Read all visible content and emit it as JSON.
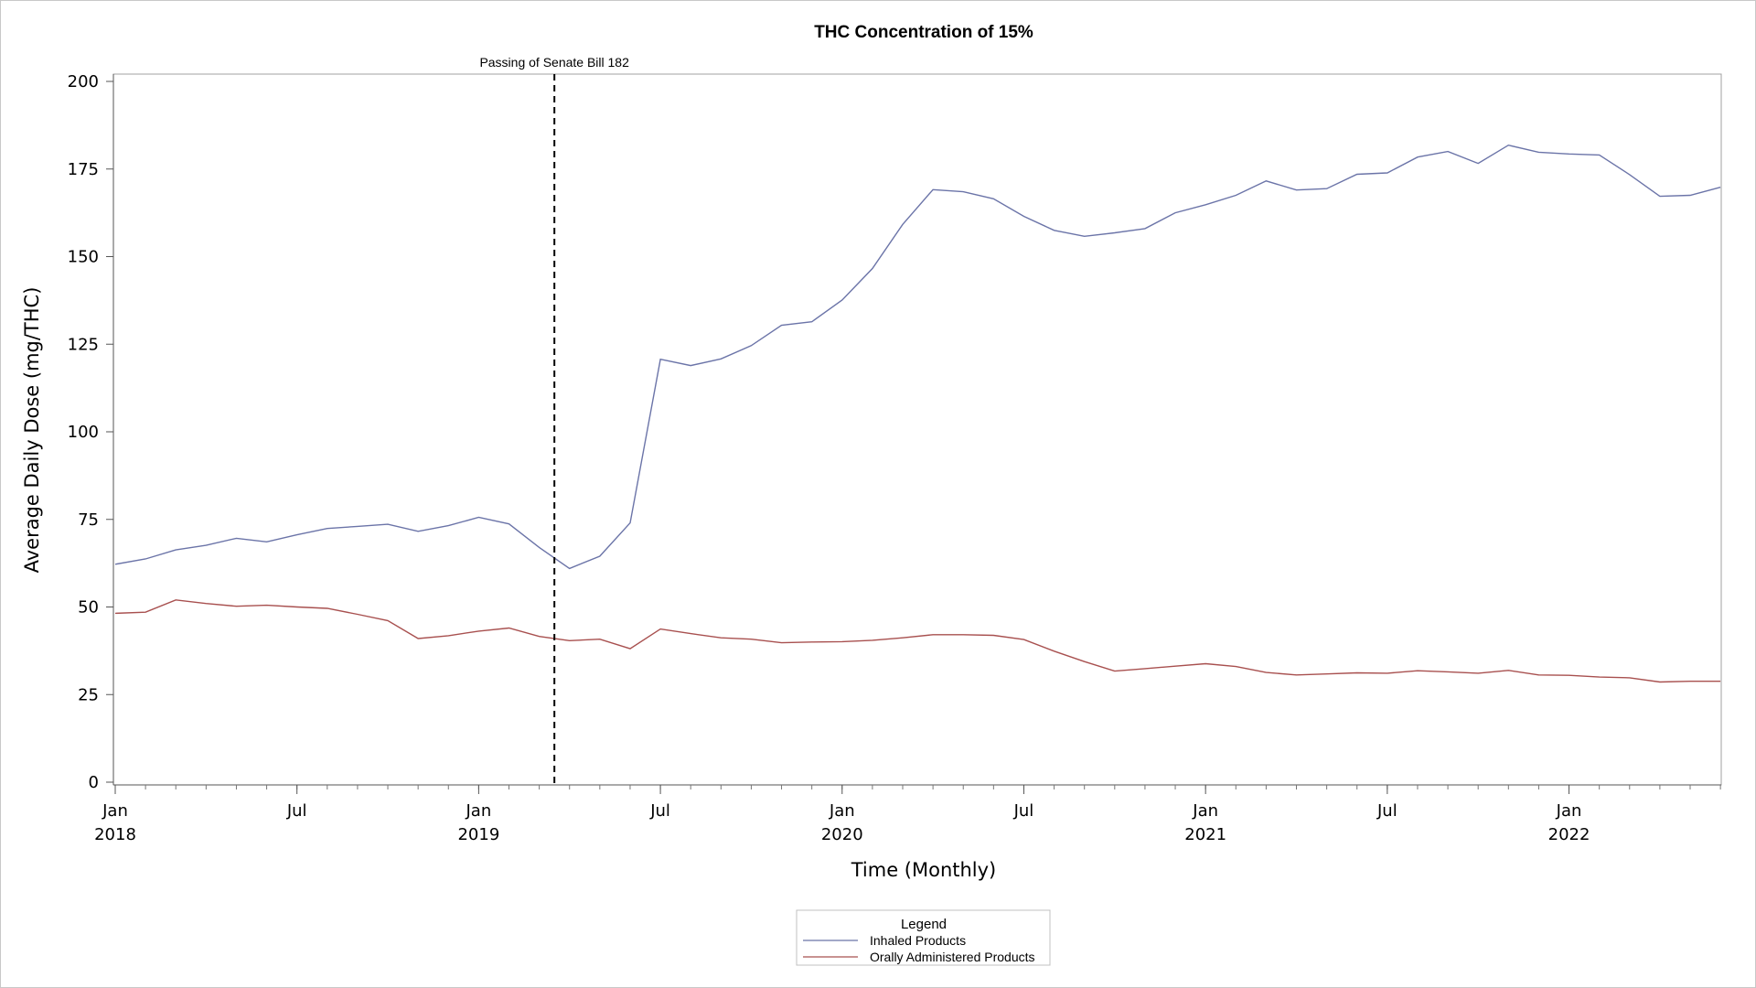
{
  "chart_data": {
    "type": "line",
    "title": "THC Concentration of 15%",
    "xlabel": "Time (Monthly)",
    "ylabel": "Average Daily Dose (mg/THC)",
    "ylim": [
      0,
      200
    ],
    "yticks": [
      0,
      25,
      50,
      75,
      100,
      125,
      150,
      175,
      200
    ],
    "x_start": "2018-01",
    "x_months": 54,
    "x_ticks": [
      {
        "month_index": 0,
        "label": "Jan",
        "year": "2018"
      },
      {
        "month_index": 6,
        "label": "Jul",
        "year": ""
      },
      {
        "month_index": 12,
        "label": "Jan",
        "year": "2019"
      },
      {
        "month_index": 18,
        "label": "Jul",
        "year": ""
      },
      {
        "month_index": 24,
        "label": "Jan",
        "year": "2020"
      },
      {
        "month_index": 30,
        "label": "Jul",
        "year": ""
      },
      {
        "month_index": 36,
        "label": "Jan",
        "year": "2021"
      },
      {
        "month_index": 42,
        "label": "Jul",
        "year": ""
      },
      {
        "month_index": 48,
        "label": "Jan",
        "year": "2022"
      }
    ],
    "annotation": {
      "label": "Passing of Senate Bill 182",
      "month_index": 14.5
    },
    "series": [
      {
        "name": "Inhaled Products",
        "color": "#6b74a8",
        "values": [
          62.2,
          63.7,
          66.3,
          67.6,
          69.6,
          68.6,
          70.6,
          72.4,
          73.0,
          73.6,
          71.6,
          73.2,
          75.6,
          73.7,
          67.0,
          61.0,
          64.5,
          74.0,
          120.7,
          118.9,
          120.8,
          124.6,
          130.4,
          131.4,
          137.6,
          146.6,
          159.2,
          169.1,
          168.5,
          166.5,
          161.5,
          157.5,
          155.8,
          156.8,
          158.0,
          162.5,
          164.8,
          167.5,
          171.6,
          169.0,
          169.4,
          173.5,
          173.9,
          178.4,
          180.0,
          176.6,
          181.8,
          179.8,
          179.3,
          179.0,
          173.4,
          167.2,
          167.5,
          169.8
        ]
      },
      {
        "name": "Orally Administered Products",
        "color": "#a8504f",
        "values": [
          48.2,
          48.5,
          52.0,
          51.0,
          50.2,
          50.5,
          50.0,
          49.6,
          47.9,
          46.1,
          41.0,
          41.8,
          43.1,
          44.0,
          41.6,
          40.4,
          40.8,
          38.1,
          43.7,
          42.4,
          41.2,
          40.8,
          39.8,
          40.0,
          40.1,
          40.5,
          41.2,
          42.1,
          42.1,
          41.9,
          40.7,
          37.4,
          34.4,
          31.7,
          32.4,
          33.1,
          33.8,
          33.0,
          31.3,
          30.6,
          30.9,
          31.2,
          31.1,
          31.8,
          31.5,
          31.1,
          31.9,
          30.6,
          30.5,
          30.0,
          29.8,
          28.6,
          28.8,
          28.8
        ]
      }
    ],
    "legend": {
      "title": "Legend",
      "placement": "bottom-center"
    }
  }
}
